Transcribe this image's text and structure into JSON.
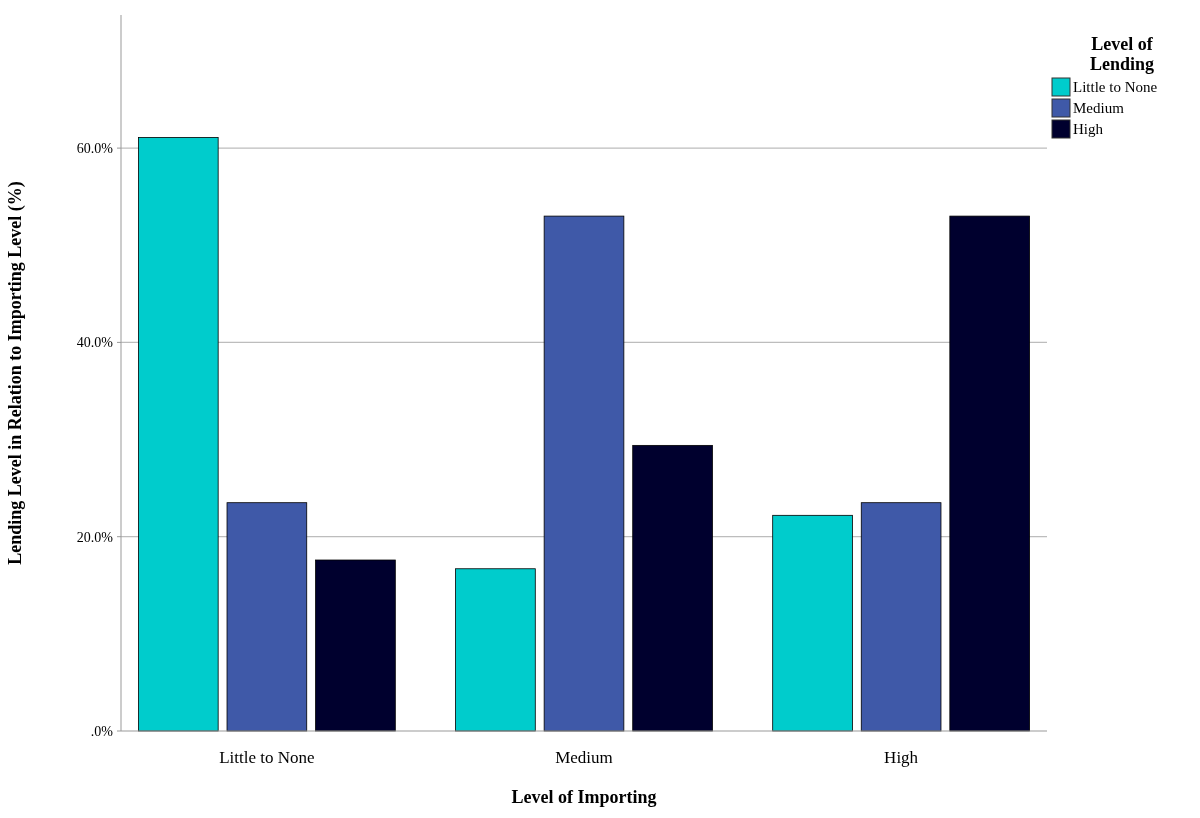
{
  "chart_data": {
    "type": "bar",
    "xlabel": "Level of Importing",
    "ylabel": "Lending Level in Relation to Importing Level (%)",
    "legend_title": "Level of Lending",
    "categories": [
      "Little to None",
      "Medium",
      "High"
    ],
    "series": [
      {
        "name": "Little to None",
        "color": "#00cccc",
        "values": [
          61.1,
          16.7,
          22.2
        ]
      },
      {
        "name": "Medium",
        "color": "#3f59a8",
        "values": [
          23.5,
          53.0,
          23.5
        ]
      },
      {
        "name": "High",
        "color": "#00002e",
        "values": [
          17.6,
          29.4,
          53.0
        ]
      }
    ],
    "ylim": [
      0,
      73.7
    ],
    "yticks": [
      {
        "value": 0,
        "label": ".0%"
      },
      {
        "value": 20,
        "label": "20.0%"
      },
      {
        "value": 40,
        "label": "40.0%"
      },
      {
        "value": 60,
        "label": "60.0%"
      }
    ],
    "grid": "y",
    "legend": "top right"
  }
}
